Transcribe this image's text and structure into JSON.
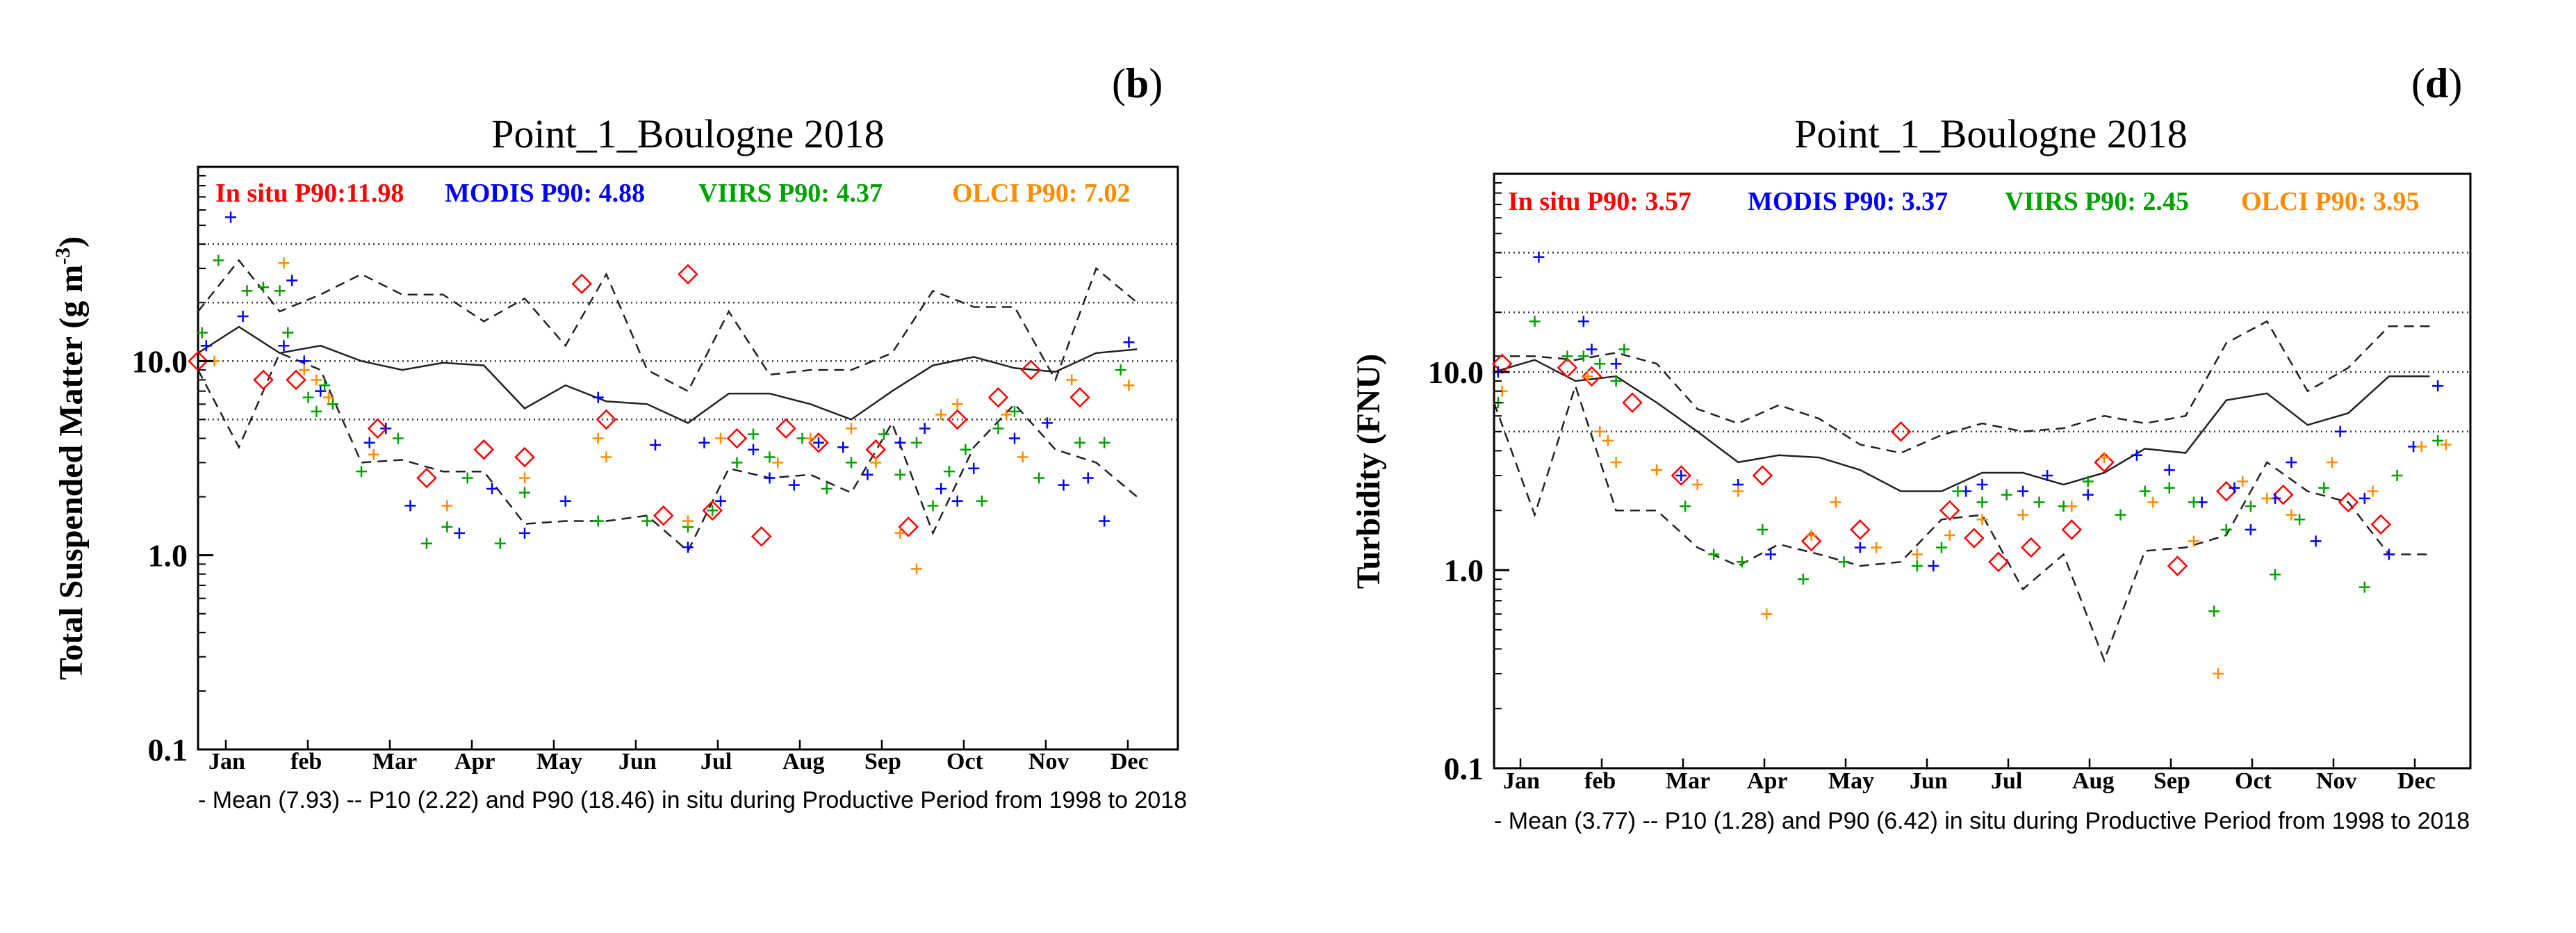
{
  "figure": {
    "panels": [
      {
        "letter_open": "(",
        "letter": "b",
        "letter_close": ")",
        "title": "Point_1_Boulogne 2018",
        "ylabel": "Total Suspended Matter (g m",
        "ylabel_sup": "-3",
        "ylabel_end": ")",
        "stats": [
          {
            "text": "In situ P90:11.98",
            "color": "#ff0000"
          },
          {
            "text": "MODIS P90: 4.88",
            "color": "#0000ff"
          },
          {
            "text": "VIIRS P90: 4.37",
            "color": "#00a000"
          },
          {
            "text": "OLCI P90: 7.02",
            "color": "#ff8c00"
          }
        ],
        "caption": "- Mean (7.93) -- P10 (2.22) and P90 (18.46) in situ during Productive Period from 1998 to 2018"
      },
      {
        "letter_open": "(",
        "letter": "d",
        "letter_close": ")",
        "title": "Point_1_Boulogne 2018",
        "ylabel": "Turbidity (FNU)",
        "ylabel_sup": "",
        "ylabel_end": "",
        "stats": [
          {
            "text": "In situ P90: 3.57",
            "color": "#ff0000"
          },
          {
            "text": "MODIS P90: 3.37",
            "color": "#0000ff"
          },
          {
            "text": "VIIRS P90: 2.45",
            "color": "#00a000"
          },
          {
            "text": "OLCI P90: 3.95",
            "color": "#ff8c00"
          }
        ],
        "caption": "- Mean (3.77) -- P10 (1.28) and P90 (6.42) in situ during Productive Period from 1998 to 2018"
      }
    ]
  },
  "chart_data": [
    {
      "type": "scatter",
      "panel": "b",
      "title": "Point_1_Boulogne 2018",
      "xlabel": "",
      "ylabel": "Total Suspended Matter (g m-3)",
      "yscale": "log",
      "ylim": [
        0.1,
        100
      ],
      "xlim": [
        0,
        12
      ],
      "grid": "dotted horizontal lines at 5, 10, 20, 40",
      "ref_lines": [
        5,
        10,
        20,
        40
      ],
      "x_ticks": [
        "Jan",
        "feb",
        "Mar",
        "Apr",
        "May",
        "Jun",
        "Jul",
        "Aug",
        "Sep",
        "Oct",
        "Nov",
        "Dec"
      ],
      "y_ticks": [
        "0.1",
        "1.0",
        "10.0"
      ],
      "y_tick_values": [
        0.1,
        1,
        10
      ],
      "climatology": {
        "x": [
          0,
          0.5,
          1,
          1.5,
          2,
          2.5,
          3,
          3.5,
          4,
          4.5,
          5,
          5.5,
          6,
          6.5,
          7,
          7.5,
          8,
          8.5,
          9,
          9.5,
          10,
          10.5,
          11,
          11.5
        ],
        "mean": [
          11,
          15,
          11,
          12,
          10,
          9,
          9.8,
          9.5,
          5.7,
          7.5,
          6.2,
          6,
          4.8,
          6.8,
          6.8,
          6,
          5,
          7,
          9.5,
          10.5,
          9.2,
          8.8,
          11,
          11.5
        ],
        "p90": [
          18,
          33,
          18,
          22,
          28,
          22,
          22,
          16,
          21,
          12,
          28,
          9,
          7,
          18,
          8.5,
          9,
          9,
          11,
          23,
          19,
          19,
          8,
          30,
          20
        ],
        "p10": [
          9,
          3.6,
          11,
          9,
          3,
          3.1,
          2.7,
          2.7,
          1.45,
          1.5,
          1.5,
          1.6,
          1.05,
          2.8,
          2.5,
          2.6,
          2.1,
          4.8,
          1.3,
          3.6,
          6,
          3.5,
          3,
          2
        ]
      },
      "series": [
        {
          "name": "In situ",
          "color": "#ff0000",
          "marker": "diamond",
          "x": [
            0,
            0.8,
            1.2,
            2.2,
            2.8,
            3.5,
            4.0,
            4.7,
            5.0,
            5.7,
            6.0,
            6.3,
            6.6,
            6.9,
            7.2,
            7.6,
            8.3,
            8.7,
            9.3,
            9.8,
            10.2,
            10.8
          ],
          "y": [
            10,
            8,
            8,
            4.5,
            2.5,
            3.5,
            3.2,
            25,
            5,
            1.6,
            28,
            1.7,
            4,
            1.25,
            4.5,
            3.8,
            3.5,
            1.4,
            5,
            6.5,
            9,
            6.5
          ]
        },
        {
          "name": "MODIS",
          "color": "#0000ff",
          "marker": "plus",
          "x": [
            0.1,
            0.4,
            0.55,
            1.05,
            1.15,
            1.3,
            1.5,
            2.1,
            2.3,
            2.6,
            3.2,
            3.6,
            4.0,
            4.5,
            4.9,
            5.6,
            6.0,
            6.2,
            6.4,
            6.8,
            7.0,
            7.3,
            7.6,
            7.9,
            8.2,
            8.6,
            8.9,
            9.1,
            9.3,
            9.5,
            10.0,
            10.4,
            10.6,
            10.9,
            11.1,
            11.4
          ],
          "y": [
            12,
            55,
            17,
            12,
            26,
            10,
            7,
            3.8,
            4.5,
            1.8,
            1.3,
            2.2,
            1.3,
            1.9,
            6.5,
            3.7,
            1.1,
            3.8,
            1.9,
            3.5,
            2.5,
            2.3,
            3.8,
            3.6,
            2.6,
            3.8,
            4.5,
            2.2,
            1.9,
            2.8,
            4,
            4.8,
            2.3,
            2.5,
            1.5,
            12.5
          ]
        },
        {
          "name": "VIIRS",
          "color": "#00a000",
          "marker": "plus",
          "x": [
            0.05,
            0.25,
            0.6,
            0.8,
            1.0,
            1.1,
            1.35,
            1.45,
            1.55,
            1.65,
            2.0,
            2.45,
            2.8,
            3.05,
            3.3,
            3.7,
            4.0,
            4.9,
            5.5,
            6.0,
            6.3,
            6.6,
            6.8,
            7.0,
            7.4,
            7.7,
            8.0,
            8.4,
            8.6,
            8.8,
            9.0,
            9.2,
            9.4,
            9.6,
            9.8,
            10.0,
            10.3,
            10.8,
            11.1,
            11.3
          ],
          "y": [
            14,
            33,
            23,
            24,
            23,
            14,
            6.5,
            5.5,
            7.5,
            6,
            2.7,
            4,
            1.15,
            1.4,
            2.5,
            1.15,
            2.1,
            1.5,
            1.5,
            1.4,
            1.7,
            3,
            4.2,
            3.2,
            4,
            2.2,
            3,
            4.2,
            2.6,
            3.8,
            1.8,
            2.7,
            3.5,
            1.9,
            4.5,
            5.5,
            2.5,
            3.8,
            3.8,
            9
          ]
        },
        {
          "name": "OLCI",
          "color": "#ff8c00",
          "marker": "plus",
          "x": [
            0.2,
            1.05,
            1.3,
            1.45,
            1.6,
            2.15,
            3.05,
            4.0,
            4.9,
            5.0,
            6.0,
            6.4,
            7.1,
            7.5,
            8.0,
            8.3,
            8.6,
            8.8,
            9.1,
            9.3,
            9.9,
            10.1,
            10.7,
            11.4
          ],
          "y": [
            10,
            32,
            9,
            8,
            6.5,
            3.3,
            1.8,
            2.5,
            4,
            3.2,
            1.5,
            4,
            3,
            4,
            4.5,
            3,
            1.3,
            0.85,
            5.3,
            6,
            5.3,
            3.2,
            8,
            7.5
          ]
        }
      ]
    },
    {
      "type": "scatter",
      "panel": "d",
      "title": "Point_1_Boulogne 2018",
      "xlabel": "",
      "ylabel": "Turbidity (FNU)",
      "yscale": "log",
      "ylim": [
        0.1,
        100
      ],
      "xlim": [
        0,
        12
      ],
      "grid": "dotted horizontal lines at 5, 10, 20, 40",
      "ref_lines": [
        5,
        10,
        20,
        40
      ],
      "x_ticks": [
        "Jan",
        "feb",
        "Mar",
        "Apr",
        "May",
        "Jun",
        "Jul",
        "Aug",
        "Sep",
        "Oct",
        "Nov",
        "Dec"
      ],
      "y_ticks": [
        "0.1",
        "1.0",
        "10.0"
      ],
      "y_tick_values": [
        0.1,
        1,
        10
      ],
      "climatology": {
        "x": [
          0,
          0.5,
          1,
          1.5,
          2,
          2.5,
          3,
          3.5,
          4,
          4.5,
          5,
          5.5,
          6,
          6.5,
          7,
          7.5,
          8,
          8.5,
          9,
          9.5,
          10,
          10.5,
          11,
          11.5
        ],
        "mean": [
          10,
          11.5,
          9,
          9.5,
          7,
          5,
          3.5,
          3.8,
          3.7,
          3.2,
          2.5,
          2.5,
          3.1,
          3.1,
          2.7,
          3.1,
          4.1,
          3.9,
          7.2,
          7.8,
          5.4,
          6.2,
          9.5,
          9.5
        ],
        "p90": [
          12,
          12,
          11.5,
          12.5,
          11,
          6.5,
          5.5,
          6.8,
          5.8,
          4.3,
          3.9,
          4.8,
          5.5,
          5,
          5.2,
          6,
          5.5,
          6,
          14,
          18,
          8,
          10.5,
          17,
          17
        ],
        "p10": [
          7,
          1.9,
          8.5,
          2,
          2,
          1.3,
          1.05,
          1.35,
          1.2,
          1.05,
          1.1,
          1.8,
          1.9,
          0.8,
          1.2,
          0.35,
          1.25,
          1.3,
          1.5,
          3.5,
          2.5,
          2.2,
          1.2,
          1.2
        ]
      },
      "series": [
        {
          "name": "In situ",
          "color": "#ff0000",
          "marker": "diamond",
          "x": [
            0.1,
            0.9,
            1.2,
            1.7,
            2.3,
            3.3,
            3.9,
            4.5,
            5.0,
            5.6,
            5.9,
            6.2,
            6.6,
            7.1,
            7.5,
            8.4,
            9.0,
            9.7,
            10.5,
            10.9
          ],
          "y": [
            11,
            10.5,
            9.5,
            7,
            3,
            3,
            1.4,
            1.6,
            5,
            2,
            1.45,
            1.1,
            1.3,
            1.6,
            3.5,
            1.05,
            2.5,
            2.4,
            2.2,
            1.7
          ]
        },
        {
          "name": "MODIS",
          "color": "#0000ff",
          "marker": "plus",
          "x": [
            0.05,
            0.55,
            1.1,
            1.2,
            1.5,
            2.3,
            3.0,
            3.4,
            4.5,
            5.4,
            5.8,
            6.0,
            6.5,
            6.8,
            7.3,
            7.9,
            8.3,
            8.7,
            9.1,
            9.3,
            9.6,
            9.8,
            10.1,
            10.4,
            10.7,
            11.0,
            11.3,
            11.6
          ],
          "y": [
            10,
            38,
            18,
            13,
            11,
            3,
            2.7,
            1.2,
            1.3,
            1.05,
            2.5,
            2.7,
            2.5,
            3,
            2.4,
            3.8,
            3.2,
            2.2,
            2.6,
            1.6,
            2.3,
            3.5,
            1.4,
            5,
            2.3,
            1.2,
            4.2,
            8.5
          ]
        },
        {
          "name": "VIIRS",
          "color": "#00a000",
          "marker": "plus",
          "x": [
            0.05,
            0.5,
            0.9,
            1.1,
            1.3,
            1.5,
            1.6,
            2.0,
            2.35,
            2.7,
            3.05,
            3.3,
            3.8,
            4.3,
            5.2,
            5.5,
            5.7,
            6.0,
            6.3,
            6.7,
            7.0,
            7.3,
            7.7,
            8.0,
            8.3,
            8.6,
            8.85,
            9.0,
            9.3,
            9.6,
            9.9,
            10.2,
            10.7,
            11.1,
            11.6
          ],
          "y": [
            7,
            18,
            12,
            12,
            11,
            9,
            13,
            3.2,
            2.1,
            1.2,
            1.1,
            1.6,
            0.9,
            1.1,
            1.05,
            1.3,
            2.5,
            2.2,
            2.4,
            2.2,
            2.1,
            2.8,
            1.9,
            2.5,
            2.6,
            2.2,
            0.62,
            1.6,
            2.1,
            0.95,
            1.8,
            2.6,
            0.82,
            3,
            4.5
          ]
        },
        {
          "name": "OLCI",
          "color": "#ff8c00",
          "marker": "plus",
          "x": [
            0.1,
            1.15,
            1.3,
            1.4,
            1.5,
            2.0,
            2.5,
            3.0,
            3.35,
            3.9,
            4.2,
            4.7,
            5.2,
            5.6,
            6.0,
            6.5,
            7.1,
            7.5,
            8.1,
            8.6,
            8.9,
            9.2,
            9.5,
            9.8,
            10.3,
            10.8,
            11.4,
            11.7
          ],
          "y": [
            8,
            9.5,
            5,
            4.5,
            3.5,
            3.2,
            2.7,
            2.5,
            0.6,
            1.5,
            2.2,
            1.3,
            1.2,
            1.5,
            1.8,
            1.9,
            2.1,
            3.7,
            2.2,
            1.4,
            0.3,
            2.8,
            2.3,
            1.9,
            3.5,
            2.5,
            4.2,
            4.3
          ]
        }
      ]
    }
  ]
}
